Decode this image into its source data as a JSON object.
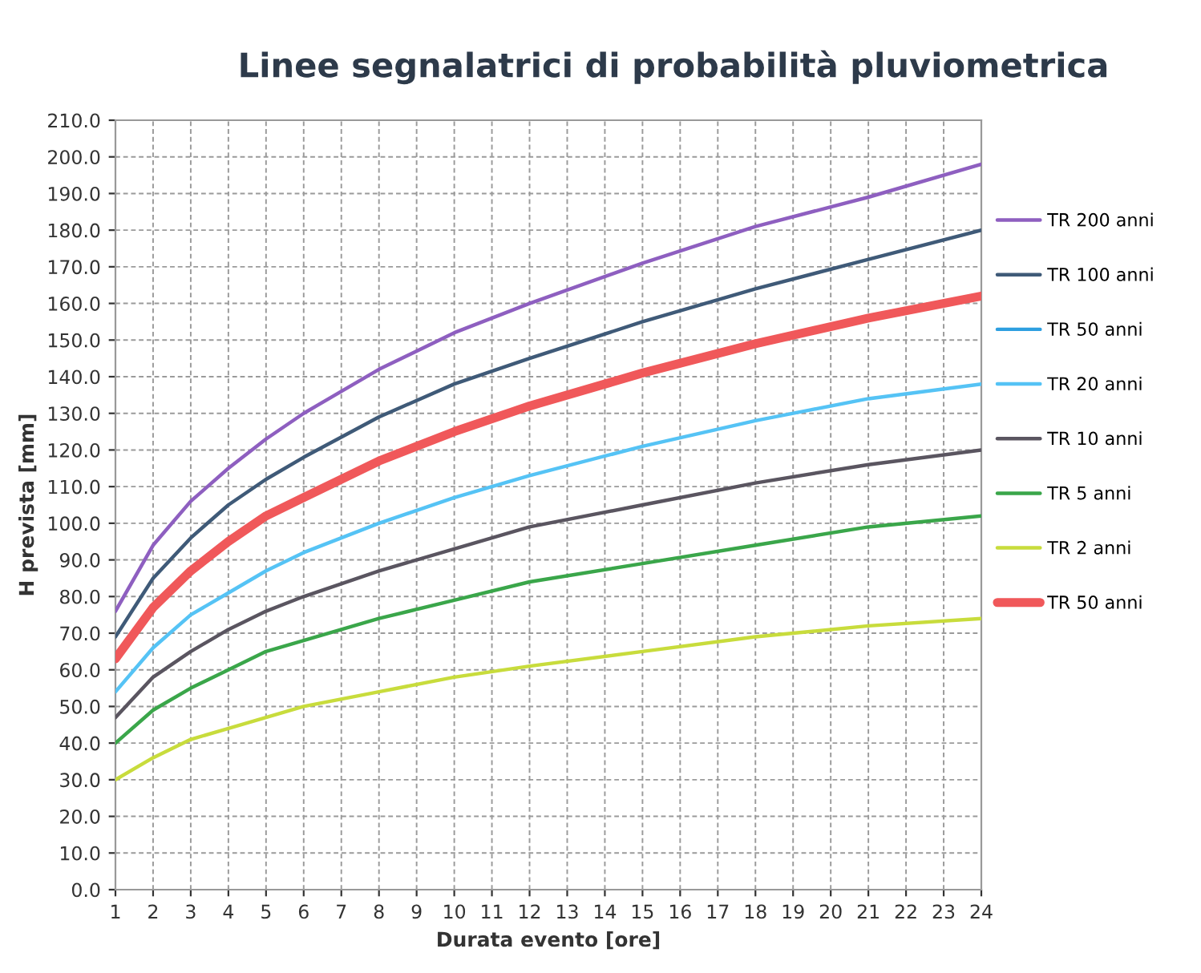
{
  "chart_data": {
    "type": "line",
    "title": "Linee segnalatrici di probabilità pluviometrica",
    "xlabel": "Durata evento [ore]",
    "ylabel": "H prevista [mm]",
    "x": [
      1,
      2,
      3,
      4,
      5,
      6,
      8,
      10,
      12,
      15,
      18,
      21,
      24
    ],
    "series": [
      {
        "name": "TR 200 anni",
        "color": "#8e5fc0",
        "values": [
          76,
          94,
          106,
          115,
          123,
          130,
          142,
          152,
          160,
          171,
          181,
          189,
          198
        ]
      },
      {
        "name": "TR 100 anni",
        "color": "#3f5a78",
        "values": [
          69,
          85,
          96,
          105,
          112,
          118,
          129,
          138,
          145,
          155,
          164,
          172,
          180
        ]
      },
      {
        "name": "TR 50 anni",
        "color": "#2e9fe0",
        "values": [
          null,
          null,
          null,
          null,
          null,
          null,
          null,
          null,
          null,
          null,
          null,
          null,
          null
        ]
      },
      {
        "name": "TR 20 anni",
        "color": "#55c3f5",
        "values": [
          54,
          66,
          75,
          81,
          87,
          92,
          100,
          107,
          113,
          121,
          128,
          134,
          138
        ]
      },
      {
        "name": "TR 10 anni",
        "color": "#5a5560",
        "values": [
          47,
          58,
          65,
          71,
          76,
          80,
          87,
          93,
          99,
          105,
          111,
          116,
          120
        ]
      },
      {
        "name": "TR 5 anni",
        "color": "#3aa64a",
        "values": [
          40,
          49,
          55,
          60,
          65,
          68,
          74,
          79,
          84,
          89,
          94,
          99,
          102
        ]
      },
      {
        "name": "TR 2 anni",
        "color": "#c8dc3c",
        "values": [
          30,
          36,
          41,
          44,
          47,
          50,
          54,
          58,
          61,
          65,
          69,
          72,
          74
        ]
      },
      {
        "name": "TR 50 anni",
        "color": "#f0585a",
        "values": [
          63,
          77,
          87,
          95,
          102,
          107,
          117,
          125,
          132,
          141,
          149,
          156,
          162
        ]
      }
    ],
    "xlim": [
      1,
      24
    ],
    "xticks": [
      1,
      2,
      3,
      4,
      5,
      6,
      7,
      8,
      9,
      10,
      11,
      12,
      13,
      14,
      15,
      16,
      17,
      18,
      19,
      20,
      21,
      22,
      23,
      24
    ],
    "ylim": [
      0,
      210
    ],
    "yticks": [
      {
        "value": 0,
        "label": "0.0"
      },
      {
        "value": 10,
        "label": "10.0"
      },
      {
        "value": 20,
        "label": "20.0"
      },
      {
        "value": 30,
        "label": "30.0"
      },
      {
        "value": 40,
        "label": "40.0"
      },
      {
        "value": 50,
        "label": "50.0"
      },
      {
        "value": 60,
        "label": "60.0"
      },
      {
        "value": 70,
        "label": "70.0"
      },
      {
        "value": 80,
        "label": "80.0"
      },
      {
        "value": 90,
        "label": "90.0"
      },
      {
        "value": 100,
        "label": "100.0"
      },
      {
        "value": 110,
        "label": "110.0"
      },
      {
        "value": 120,
        "label": "120.0"
      },
      {
        "value": 130,
        "label": "130.0"
      },
      {
        "value": 140,
        "label": "140.0"
      },
      {
        "value": 150,
        "label": "150.0"
      },
      {
        "value": 160,
        "label": "160.0"
      },
      {
        "value": 170,
        "label": "170.0"
      },
      {
        "value": 180,
        "label": "180.0"
      },
      {
        "value": 190,
        "label": "190.0"
      },
      {
        "value": 200,
        "label": "200.0"
      },
      {
        "value": 210,
        "label": "210.0"
      }
    ],
    "grid": true,
    "legend": "right",
    "marker": "none",
    "line_style": "solid"
  }
}
